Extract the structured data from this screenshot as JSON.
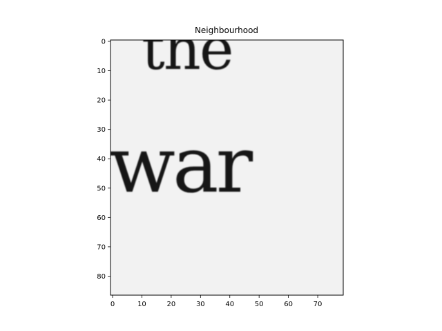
{
  "title": "Neighbourhood",
  "image_text": [
    "the",
    "war"
  ],
  "colors": {
    "background": "#f2f2f2",
    "ink": "#161616",
    "axis": "#000000"
  },
  "x_axis": {
    "range": [
      0,
      78
    ],
    "ticks": [
      0,
      10,
      20,
      30,
      40,
      50,
      60,
      70
    ]
  },
  "y_axis": {
    "range": [
      0,
      86
    ],
    "ticks": [
      0,
      10,
      20,
      30,
      40,
      50,
      60,
      70,
      80
    ],
    "inverted": true
  },
  "colormap": "gray"
}
